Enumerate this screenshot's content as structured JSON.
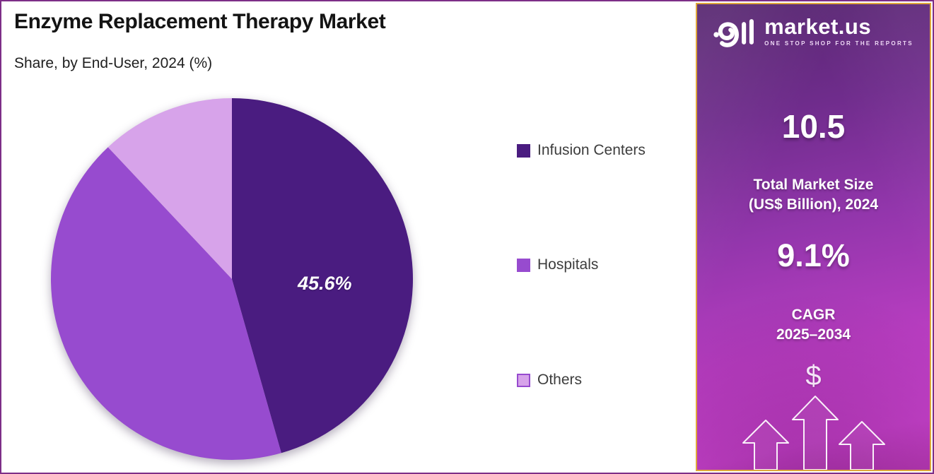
{
  "header": {
    "title": "Enzyme Replacement Therapy Market",
    "subtitle": "Share, by End-User, 2024 (%)"
  },
  "chart_data": {
    "type": "pie",
    "title": "Enzyme Replacement Therapy Market",
    "subtitle": "Share, by End-User, 2024 (%)",
    "unit": "%",
    "start_angle_deg": 0,
    "direction": "clockwise",
    "legend_position": "right",
    "slices": [
      {
        "label": "Infusion Centers",
        "value": 45.6,
        "display": "45.6%",
        "color": "#4A1C80"
      },
      {
        "label": "Hospitals",
        "value": 42.4,
        "display": "",
        "color": "#974BCF"
      },
      {
        "label": "Others",
        "value": 12.0,
        "display": "",
        "color": "#D7A3EA",
        "border": "#974BCF"
      }
    ]
  },
  "sidebar": {
    "brand": "market.us",
    "tagline": "ONE STOP SHOP FOR THE REPORTS",
    "market_size_value": "10.5",
    "market_size_label_line1": "Total Market Size",
    "market_size_label_line2": "(US$ Billion), 2024",
    "cagr_value": "9.1%",
    "cagr_label_line1": "CAGR",
    "cagr_label_line2": "2025–2034",
    "dollar_symbol": "$"
  },
  "colors": {
    "outer_border": "#7D2E87",
    "panel_border": "#DFA63B",
    "panel_gradient_top": "#56276F",
    "panel_gradient_bottom": "#C743CC",
    "title_ink": "#141414",
    "legend_ink": "#3D3D3D",
    "pie_label_ink": "#FFFFFF"
  }
}
